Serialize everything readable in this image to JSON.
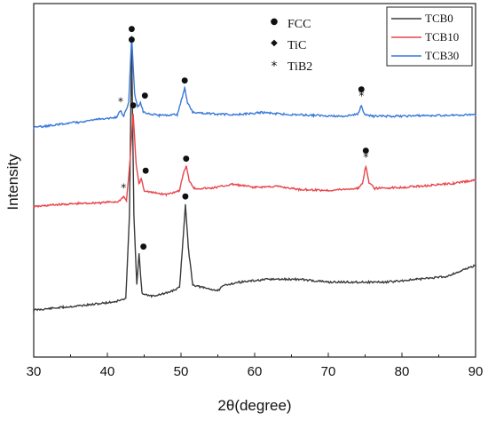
{
  "chart_data": {
    "type": "line",
    "title": "",
    "xlabel": "2θ(degree)",
    "ylabel": "Intensity",
    "xlim": [
      30,
      90
    ],
    "x_ticks": [
      30,
      40,
      50,
      60,
      70,
      80,
      90
    ],
    "y_ticks_shown": false,
    "grid": false,
    "legend_placement": "top-right",
    "series": [
      {
        "name": "TCB0",
        "color": "#3a3a3a",
        "points": [
          [
            30,
            6
          ],
          [
            34,
            7
          ],
          [
            38,
            8
          ],
          [
            41,
            9
          ],
          [
            42.5,
            10
          ],
          [
            43.0,
            40
          ],
          [
            43.3,
            100
          ],
          [
            43.6,
            40
          ],
          [
            44.0,
            15
          ],
          [
            44.3,
            26
          ],
          [
            44.7,
            12
          ],
          [
            46,
            11
          ],
          [
            48,
            12
          ],
          [
            49.8,
            14
          ],
          [
            50.3,
            32
          ],
          [
            50.6,
            44
          ],
          [
            51.0,
            28
          ],
          [
            51.6,
            15
          ],
          [
            53,
            14
          ],
          [
            55,
            13
          ],
          [
            56,
            15
          ],
          [
            58,
            16
          ],
          [
            62,
            17
          ],
          [
            66,
            17
          ],
          [
            70,
            16
          ],
          [
            74,
            16
          ],
          [
            78,
            16
          ],
          [
            82,
            17
          ],
          [
            86,
            18
          ],
          [
            90,
            22
          ]
        ]
      },
      {
        "name": "TCB10",
        "color": "#e8454a",
        "points": [
          [
            30,
            8
          ],
          [
            33,
            10
          ],
          [
            36,
            11
          ],
          [
            39,
            12
          ],
          [
            41.5,
            13
          ],
          [
            42.2,
            18
          ],
          [
            42.6,
            14
          ],
          [
            43.1,
            55
          ],
          [
            43.5,
            100
          ],
          [
            43.9,
            50
          ],
          [
            44.3,
            30
          ],
          [
            44.6,
            36
          ],
          [
            45.0,
            24
          ],
          [
            46,
            22
          ],
          [
            48,
            20
          ],
          [
            49.8,
            24
          ],
          [
            50.3,
            40
          ],
          [
            50.7,
            48
          ],
          [
            51.1,
            34
          ],
          [
            51.8,
            26
          ],
          [
            54,
            26
          ],
          [
            57,
            30
          ],
          [
            60,
            27
          ],
          [
            63,
            28
          ],
          [
            66,
            25
          ],
          [
            70,
            24
          ],
          [
            74,
            26
          ],
          [
            74.6,
            30
          ],
          [
            75.1,
            48
          ],
          [
            75.5,
            32
          ],
          [
            76.3,
            26
          ],
          [
            80,
            27
          ],
          [
            84,
            29
          ],
          [
            87,
            31
          ],
          [
            90,
            34
          ]
        ]
      },
      {
        "name": "TCB30",
        "color": "#3a79d8",
        "points": [
          [
            30,
            4
          ],
          [
            33,
            7
          ],
          [
            36,
            10
          ],
          [
            39,
            13
          ],
          [
            41.3,
            15
          ],
          [
            41.8,
            22
          ],
          [
            42.2,
            16
          ],
          [
            42.9,
            30
          ],
          [
            43.3,
            100
          ],
          [
            43.7,
            40
          ],
          [
            44.1,
            26
          ],
          [
            44.5,
            30
          ],
          [
            44.9,
            20
          ],
          [
            47,
            17
          ],
          [
            49.5,
            18
          ],
          [
            50.1,
            34
          ],
          [
            50.5,
            46
          ],
          [
            50.9,
            30
          ],
          [
            51.6,
            20
          ],
          [
            55,
            18
          ],
          [
            58,
            18
          ],
          [
            61,
            20
          ],
          [
            64,
            18
          ],
          [
            68,
            17
          ],
          [
            72,
            16
          ],
          [
            74.0,
            18
          ],
          [
            74.5,
            28
          ],
          [
            74.9,
            18
          ],
          [
            76,
            16
          ],
          [
            80,
            16
          ],
          [
            84,
            17
          ],
          [
            87,
            17
          ],
          [
            90,
            18
          ]
        ]
      }
    ],
    "phase_legend": [
      {
        "symbol": "●",
        "label": "FCC"
      },
      {
        "symbol": "◆",
        "label": "TiC"
      },
      {
        "symbol": "*",
        "label": "TiB2"
      }
    ],
    "peak_markers": [
      {
        "series": "TCB0",
        "x": 43.3,
        "symbol": "●"
      },
      {
        "series": "TCB0",
        "x": 44.3,
        "symbol": "●"
      },
      {
        "series": "TCB0",
        "x": 50.6,
        "symbol": "●"
      },
      {
        "series": "TCB10",
        "x": 42.2,
        "symbol": "*"
      },
      {
        "series": "TCB10",
        "x": 43.5,
        "symbol": "●"
      },
      {
        "series": "TCB10",
        "x": 44.6,
        "symbol": "●"
      },
      {
        "series": "TCB10",
        "x": 50.7,
        "symbol": "●"
      },
      {
        "series": "TCB10",
        "x": 75.1,
        "symbol": "*"
      },
      {
        "series": "TCB10",
        "x": 75.1,
        "symbol": "●"
      },
      {
        "series": "TCB30",
        "x": 41.8,
        "symbol": "*"
      },
      {
        "series": "TCB30",
        "x": 43.3,
        "symbol": "●"
      },
      {
        "series": "TCB30",
        "x": 44.5,
        "symbol": "●"
      },
      {
        "series": "TCB30",
        "x": 50.5,
        "symbol": "●"
      },
      {
        "series": "TCB30",
        "x": 74.5,
        "symbol": "*"
      },
      {
        "series": "TCB30",
        "x": 74.5,
        "symbol": "●"
      }
    ]
  }
}
